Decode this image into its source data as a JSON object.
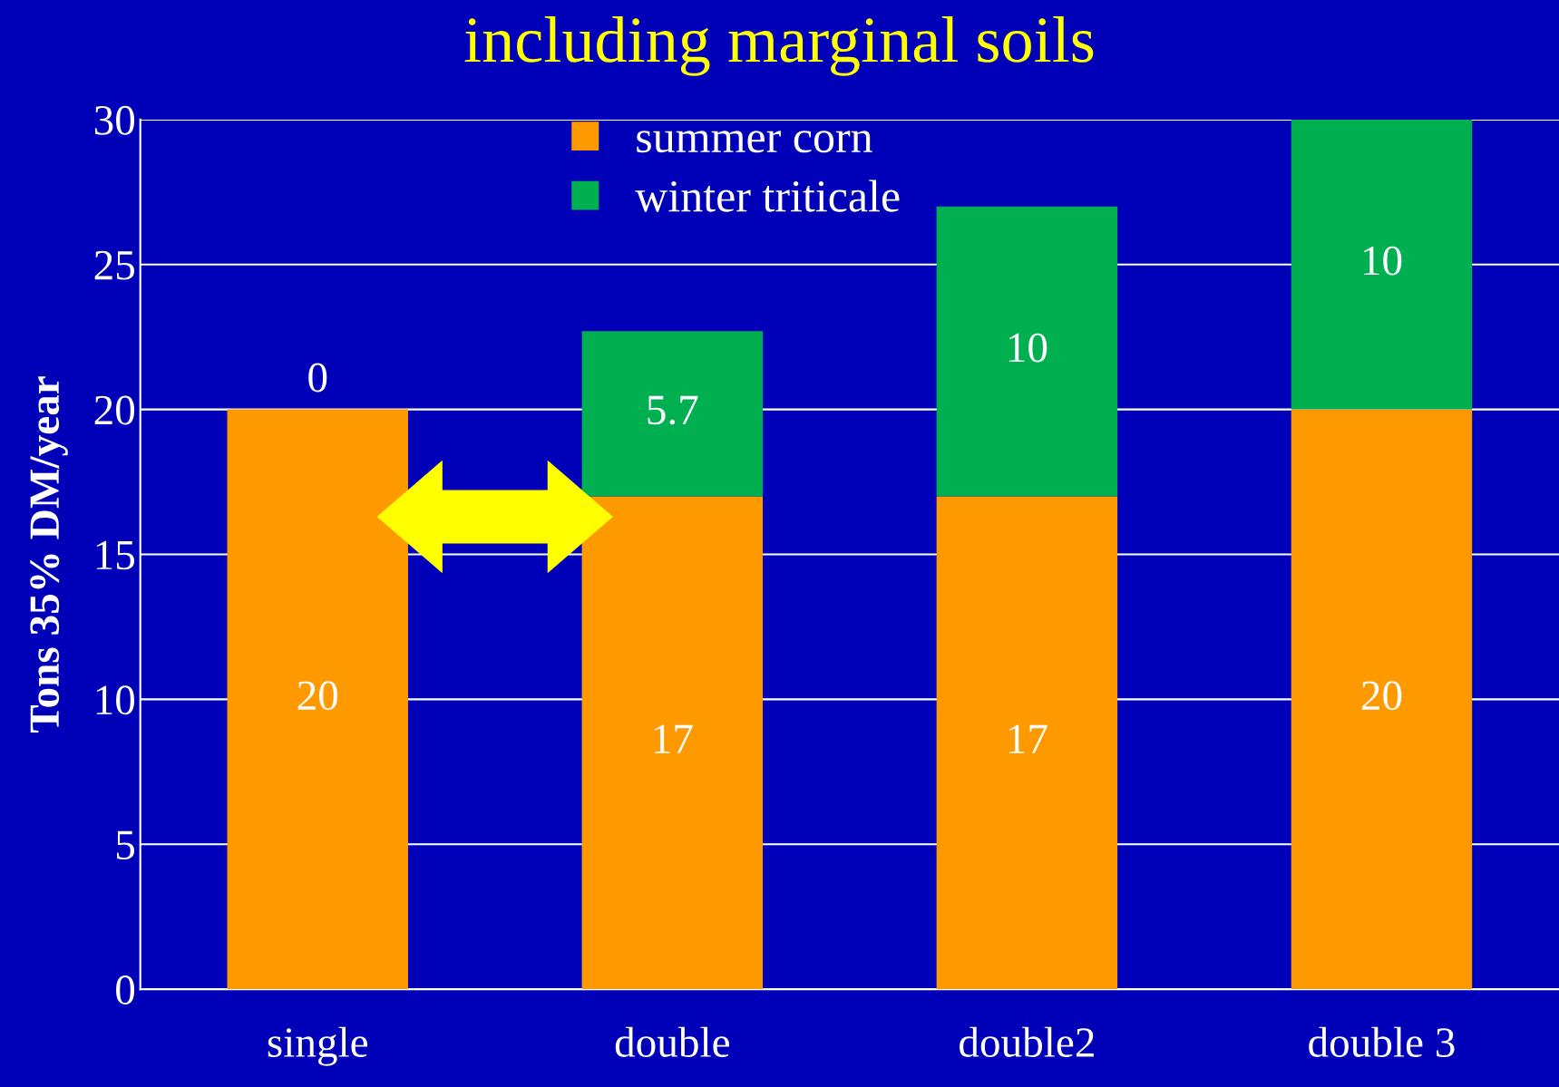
{
  "chart_data": {
    "type": "bar",
    "title": "including marginal soils",
    "ylabel": "Tons 35% DM/year",
    "categories": [
      "single",
      "double",
      "double2",
      "double 3"
    ],
    "series": [
      {
        "name": "summer corn",
        "color": "#ff9900",
        "values": [
          20,
          17,
          17,
          20
        ]
      },
      {
        "name": "winter triticale",
        "color": "#00b050",
        "values": [
          0,
          5.7,
          10,
          10
        ]
      }
    ],
    "stacked": true,
    "data_labels": true,
    "ylim": [
      0,
      30
    ],
    "yticks": [
      0,
      5,
      10,
      15,
      20,
      25,
      30
    ],
    "grid": "y",
    "legend": "top"
  }
}
